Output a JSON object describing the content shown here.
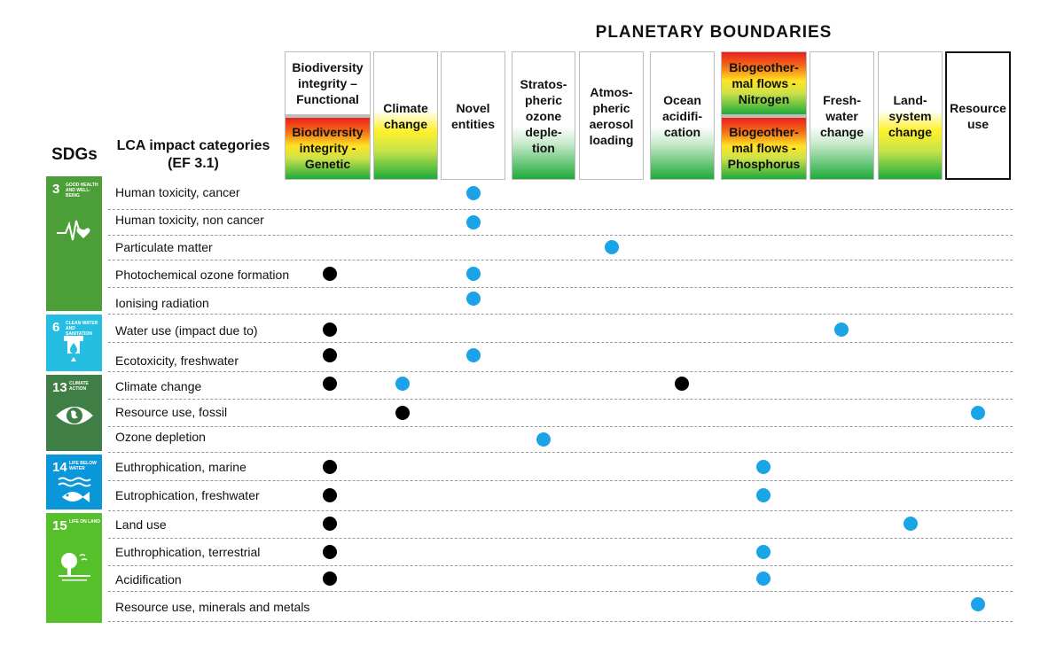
{
  "titles": {
    "planetary": "PLANETARY BOUNDARIES",
    "sdgs": "SDGs",
    "lca_line1": "LCA impact categories",
    "lca_line2": "(EF 3.1)"
  },
  "columns": [
    {
      "key": "biodiv",
      "label_top": "Biodiversity integrity – Functional",
      "label_bottom": "Biodiversity integrity - Genetic"
    },
    {
      "key": "climate",
      "label": "Climate change"
    },
    {
      "key": "novel",
      "label": "Novel entities"
    },
    {
      "key": "ozone",
      "label": "Stratos-pheric ozone deple-tion"
    },
    {
      "key": "aerosol",
      "label": "Atmos-pheric aerosol loading"
    },
    {
      "key": "acid",
      "label": "Ocean acidifi-cation"
    },
    {
      "key": "bgc",
      "label_top": "Biogeother-mal flows - Nitrogen",
      "label_bottom": "Biogeother-mal flows - Phosphorus"
    },
    {
      "key": "water",
      "label": "Fresh-water change"
    },
    {
      "key": "land",
      "label": "Land-system change"
    },
    {
      "key": "resource",
      "label": "Resource use"
    }
  ],
  "sdgs": [
    {
      "num": "3",
      "text": "GOOD HEALTH AND WELL-BEING",
      "icon": "heartbeat-icon",
      "color": "#4c9f38"
    },
    {
      "num": "6",
      "text": "CLEAN WATER AND SANITATION",
      "icon": "water-drop-icon",
      "color": "#26bde2"
    },
    {
      "num": "13",
      "text": "CLIMATE ACTION",
      "icon": "eye-globe-icon",
      "color": "#3f7e44"
    },
    {
      "num": "14",
      "text": "LIFE BELOW WATER",
      "icon": "fish-icon",
      "color": "#0a97d9"
    },
    {
      "num": "15",
      "text": "LIFE ON LAND",
      "icon": "tree-icon",
      "color": "#56c02b"
    }
  ],
  "rows": [
    {
      "label": "Human toxicity, cancer",
      "dots": [
        {
          "col": "novel",
          "color": "blue"
        }
      ]
    },
    {
      "label": "Human toxicity, non cancer",
      "dots": [
        {
          "col": "novel",
          "color": "blue"
        }
      ]
    },
    {
      "label": "Particulate matter",
      "dots": [
        {
          "col": "aerosol",
          "color": "blue"
        }
      ]
    },
    {
      "label": "Photochemical ozone formation",
      "dots": [
        {
          "col": "biodiv",
          "color": "black"
        },
        {
          "col": "novel",
          "color": "blue"
        }
      ]
    },
    {
      "label": "Ionising radiation",
      "dots": [
        {
          "col": "novel",
          "color": "blue"
        }
      ]
    },
    {
      "label": "Water use (impact due to)",
      "dots": [
        {
          "col": "biodiv",
          "color": "black"
        },
        {
          "col": "water",
          "color": "blue"
        }
      ]
    },
    {
      "label": "Ecotoxicity, freshwater",
      "dots": [
        {
          "col": "biodiv",
          "color": "black"
        },
        {
          "col": "novel",
          "color": "blue"
        }
      ]
    },
    {
      "label": "Climate change",
      "dots": [
        {
          "col": "biodiv",
          "color": "black"
        },
        {
          "col": "climate",
          "color": "blue"
        },
        {
          "col": "acid",
          "color": "black"
        }
      ]
    },
    {
      "label": "Resource use, fossil",
      "dots": [
        {
          "col": "climate",
          "color": "black"
        },
        {
          "col": "resource",
          "color": "blue"
        }
      ]
    },
    {
      "label": "Ozone depletion",
      "dots": [
        {
          "col": "ozone",
          "color": "blue"
        }
      ]
    },
    {
      "label": "Euthrophication, marine",
      "dots": [
        {
          "col": "biodiv",
          "color": "black"
        },
        {
          "col": "bgc",
          "color": "blue"
        }
      ]
    },
    {
      "label": "Eutrophication, freshwater",
      "dots": [
        {
          "col": "biodiv",
          "color": "black"
        },
        {
          "col": "bgc",
          "color": "blue"
        }
      ]
    },
    {
      "label": "Land use",
      "dots": [
        {
          "col": "biodiv",
          "color": "black"
        },
        {
          "col": "land",
          "color": "blue"
        }
      ]
    },
    {
      "label": "Euthrophication, terrestrial",
      "dots": [
        {
          "col": "biodiv",
          "color": "black"
        },
        {
          "col": "bgc",
          "color": "blue"
        }
      ]
    },
    {
      "label": "Acidification",
      "dots": [
        {
          "col": "biodiv",
          "color": "black"
        },
        {
          "col": "bgc",
          "color": "blue"
        }
      ]
    },
    {
      "label": "Resource use, minerals and metals",
      "dots": [
        {
          "col": "resource",
          "color": "blue"
        }
      ]
    }
  ],
  "colors": {
    "blue_dot": "#1ba3e8",
    "black_dot": "#000000"
  }
}
